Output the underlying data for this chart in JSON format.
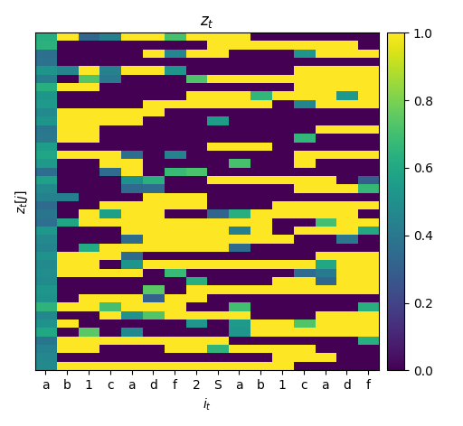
{
  "x_labels": [
    "a",
    "b",
    "1",
    "c",
    "a",
    "d",
    "f",
    "2",
    "S",
    "a",
    "b",
    "1",
    "c",
    "a",
    "d",
    "f"
  ],
  "title": "$z_t$",
  "ylabel": "$z_t[j]$",
  "xlabel": "$i_t$",
  "cmap": "viridis",
  "vmin": 0.0,
  "vmax": 1.0,
  "n_rows": 40,
  "n_cols": 16,
  "seed": 7
}
